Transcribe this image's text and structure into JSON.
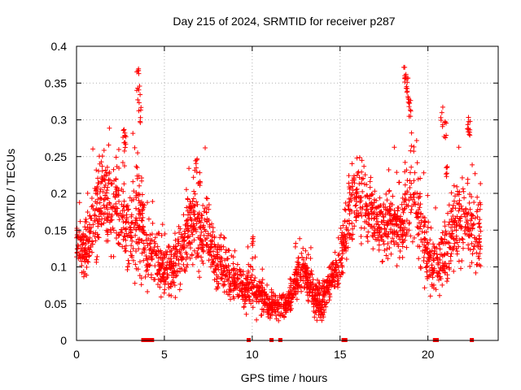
{
  "chart_data": {
    "type": "scatter",
    "title": "Day 215 of 2024, SRMTID for receiver p287",
    "xlabel": "GPS time / hours",
    "ylabel": "SRMTID / TECUs",
    "xlim": [
      0,
      24
    ],
    "ylim": [
      0,
      0.4
    ],
    "grid": true,
    "marker": "+",
    "color": "#ff0000",
    "x_ticks": [
      0,
      5,
      10,
      15,
      20
    ],
    "x_tick_labels": [
      "0",
      "5",
      "10",
      "15",
      "20"
    ],
    "y_ticks": [
      0,
      0.05,
      0.1,
      0.15,
      0.2,
      0.25,
      0.3,
      0.35,
      0.4
    ],
    "y_tick_labels": [
      "0",
      "0.05",
      "0.1",
      "0.15",
      "0.2",
      "0.25",
      "0.3",
      "0.35",
      "0.4"
    ],
    "envelope": {
      "description": "approximate central trend of the scattered SRMTID values (hour, TECU)",
      "x": [
        0.0,
        0.5,
        1.0,
        1.5,
        2.0,
        2.5,
        3.0,
        3.5,
        4.0,
        4.5,
        5.0,
        5.5,
        6.0,
        6.5,
        7.0,
        7.5,
        8.0,
        8.5,
        9.0,
        9.5,
        10.0,
        10.5,
        11.0,
        11.5,
        12.0,
        12.5,
        13.0,
        13.5,
        14.0,
        14.5,
        15.0,
        15.5,
        16.0,
        16.5,
        17.0,
        17.5,
        18.0,
        18.5,
        19.0,
        19.5,
        20.0,
        20.5,
        21.0,
        21.5,
        22.0,
        22.5,
        23.0
      ],
      "y": [
        0.13,
        0.12,
        0.17,
        0.2,
        0.18,
        0.17,
        0.14,
        0.17,
        0.12,
        0.11,
        0.1,
        0.1,
        0.12,
        0.17,
        0.14,
        0.15,
        0.1,
        0.09,
        0.08,
        0.07,
        0.07,
        0.06,
        0.05,
        0.045,
        0.05,
        0.08,
        0.1,
        0.06,
        0.05,
        0.08,
        0.11,
        0.17,
        0.2,
        0.18,
        0.16,
        0.15,
        0.16,
        0.15,
        0.2,
        0.17,
        0.11,
        0.1,
        0.12,
        0.15,
        0.16,
        0.15,
        0.13
      ],
      "spread": [
        0.025,
        0.035,
        0.05,
        0.05,
        0.05,
        0.05,
        0.045,
        0.07,
        0.04,
        0.03,
        0.028,
        0.03,
        0.04,
        0.05,
        0.04,
        0.04,
        0.03,
        0.03,
        0.025,
        0.025,
        0.025,
        0.02,
        0.015,
        0.015,
        0.015,
        0.025,
        0.03,
        0.02,
        0.02,
        0.02,
        0.03,
        0.04,
        0.04,
        0.04,
        0.035,
        0.035,
        0.04,
        0.04,
        0.07,
        0.05,
        0.04,
        0.035,
        0.04,
        0.04,
        0.045,
        0.045,
        0.04
      ]
    },
    "outliers": {
      "x": [
        3.5,
        3.55,
        3.6,
        18.7,
        18.75,
        18.8,
        18.9,
        19.0,
        20.8,
        21.0,
        21.1,
        22.3,
        22.35,
        2.7,
        2.75,
        6.8,
        7.0,
        10.0
      ],
      "y": [
        0.37,
        0.35,
        0.32,
        0.38,
        0.37,
        0.36,
        0.34,
        0.33,
        0.32,
        0.3,
        0.25,
        0.31,
        0.3,
        0.29,
        0.28,
        0.25,
        0.24,
        0.15
      ]
    },
    "gap_markers_x": [
      3.8,
      3.9,
      4.0,
      4.2,
      4.3,
      9.8,
      11.1,
      11.6,
      15.2,
      15.3,
      20.4,
      20.5,
      22.5
    ]
  }
}
